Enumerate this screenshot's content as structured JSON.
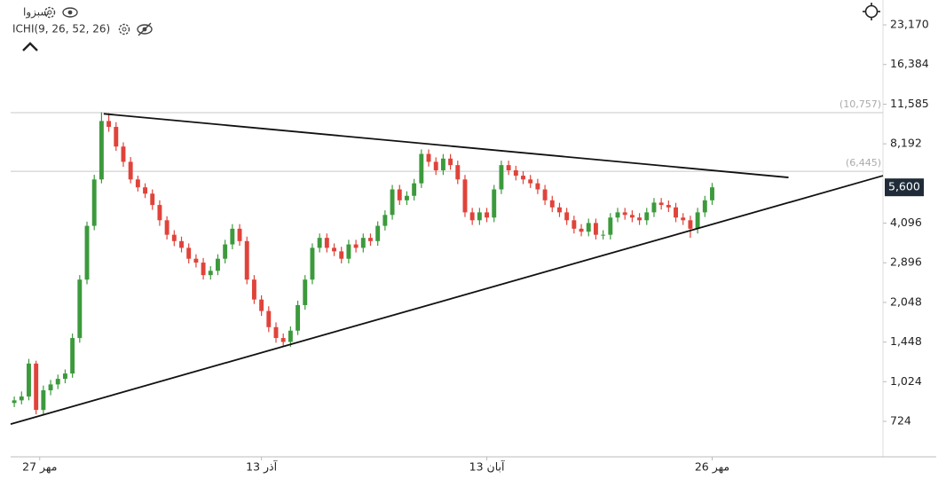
{
  "chart_data": {
    "type": "candlestick",
    "title": "سبزوا",
    "indicator": "ICHI(9, 26, 52, 26)",
    "log_scale": true,
    "up_color": "#3c9a3c",
    "down_color": "#e0433a",
    "xlim": [
      -0.5,
      119.5
    ],
    "ylim": [
      531,
      28800
    ],
    "xticks": [
      {
        "value": 3.5,
        "label": "27 مهر"
      },
      {
        "value": 34,
        "label": "13 آذر"
      },
      {
        "value": 65,
        "label": "13 آبان"
      },
      {
        "value": 96,
        "label": "26 مهر"
      }
    ],
    "yticks": [
      724,
      {
        "value": 1024,
        "label": "1,024"
      },
      {
        "value": 1448,
        "label": "1,448"
      },
      {
        "value": 2048,
        "label": "2,048"
      },
      {
        "value": 2896,
        "label": "2,896"
      },
      {
        "value": 4096,
        "label": "4,096"
      },
      {
        "value": 8192,
        "label": "8,192"
      },
      {
        "value": 11585,
        "label": "11,585"
      },
      {
        "value": 16384,
        "label": "16,384"
      },
      {
        "value": 23170,
        "label": "23,170"
      }
    ],
    "price_lines": [
      {
        "value": 10757,
        "label": "(10,757)"
      },
      {
        "value": 6445,
        "label": "(6,445)"
      }
    ],
    "last_price": {
      "value": 5600,
      "label": "5,600"
    },
    "trendlines": [
      {
        "x": [
          12.3,
          106.5
        ],
        "y": [
          10650,
          6105
        ]
      },
      {
        "x": [
          -0.5,
          119.5
        ],
        "y": [
          707,
          6200
        ]
      }
    ],
    "ohlc": [
      [
        850,
        900,
        820,
        870
      ],
      [
        870,
        940,
        840,
        900
      ],
      [
        900,
        1250,
        870,
        1200
      ],
      [
        1200,
        1230,
        770,
        800
      ],
      [
        800,
        990,
        770,
        950
      ],
      [
        950,
        1040,
        910,
        1000
      ],
      [
        1000,
        1090,
        960,
        1050
      ],
      [
        1050,
        1140,
        1010,
        1100
      ],
      [
        1100,
        1560,
        1060,
        1500
      ],
      [
        1500,
        2600,
        1440,
        2500
      ],
      [
        2500,
        4150,
        2400,
        4000
      ],
      [
        4000,
        6250,
        3850,
        6000
      ],
      [
        6000,
        10800,
        5800,
        10000
      ],
      [
        10000,
        10700,
        9100,
        9500
      ],
      [
        9500,
        9900,
        7700,
        8000
      ],
      [
        8000,
        8300,
        6700,
        7000
      ],
      [
        7000,
        7300,
        5800,
        6000
      ],
      [
        6000,
        6200,
        5400,
        5600
      ],
      [
        5600,
        5800,
        5100,
        5300
      ],
      [
        5300,
        5500,
        4600,
        4800
      ],
      [
        4800,
        5000,
        4000,
        4200
      ],
      [
        4200,
        4350,
        3550,
        3700
      ],
      [
        3700,
        3850,
        3350,
        3500
      ],
      [
        3500,
        3640,
        3170,
        3300
      ],
      [
        3300,
        3430,
        2880,
        3000
      ],
      [
        3000,
        3120,
        2780,
        2900
      ],
      [
        2900,
        3020,
        2500,
        2600
      ],
      [
        2600,
        2810,
        2500,
        2700
      ],
      [
        2700,
        3120,
        2600,
        3000
      ],
      [
        3000,
        3540,
        2880,
        3400
      ],
      [
        3400,
        4060,
        3260,
        3900
      ],
      [
        3900,
        4060,
        3360,
        3500
      ],
      [
        3500,
        3640,
        2400,
        2500
      ],
      [
        2500,
        2600,
        2020,
        2100
      ],
      [
        2100,
        2180,
        1820,
        1900
      ],
      [
        1900,
        1980,
        1580,
        1650
      ],
      [
        1650,
        1720,
        1440,
        1500
      ],
      [
        1500,
        1560,
        1390,
        1450
      ],
      [
        1450,
        1660,
        1390,
        1600
      ],
      [
        1600,
        2080,
        1540,
        2000
      ],
      [
        2000,
        2600,
        1920,
        2500
      ],
      [
        2500,
        3430,
        2400,
        3300
      ],
      [
        3300,
        3740,
        3170,
        3600
      ],
      [
        3600,
        3740,
        3170,
        3300
      ],
      [
        3300,
        3430,
        3070,
        3200
      ],
      [
        3200,
        3330,
        2880,
        3000
      ],
      [
        3000,
        3540,
        2880,
        3400
      ],
      [
        3400,
        3540,
        3170,
        3300
      ],
      [
        3300,
        3740,
        3170,
        3600
      ],
      [
        3600,
        3740,
        3360,
        3500
      ],
      [
        3500,
        4160,
        3360,
        4000
      ],
      [
        4000,
        4580,
        3840,
        4400
      ],
      [
        4400,
        5720,
        4220,
        5500
      ],
      [
        5500,
        5720,
        4800,
        5000
      ],
      [
        5000,
        5410,
        4800,
        5200
      ],
      [
        5200,
        6030,
        4990,
        5800
      ],
      [
        5800,
        7800,
        5570,
        7500
      ],
      [
        7500,
        7800,
        6720,
        7000
      ],
      [
        7000,
        7280,
        6240,
        6500
      ],
      [
        6500,
        7490,
        6240,
        7200
      ],
      [
        7200,
        7490,
        6530,
        6800
      ],
      [
        6800,
        7070,
        5760,
        6000
      ],
      [
        6000,
        6240,
        4320,
        4500
      ],
      [
        4500,
        4680,
        4030,
        4200
      ],
      [
        4200,
        4680,
        4030,
        4500
      ],
      [
        4500,
        4680,
        4130,
        4300
      ],
      [
        4300,
        5720,
        4130,
        5500
      ],
      [
        5500,
        7070,
        5280,
        6800
      ],
      [
        6800,
        7070,
        6240,
        6500
      ],
      [
        6500,
        6760,
        5950,
        6200
      ],
      [
        6200,
        6450,
        5760,
        6000
      ],
      [
        6000,
        6240,
        5570,
        5800
      ],
      [
        5800,
        6030,
        5280,
        5500
      ],
      [
        5500,
        5720,
        4800,
        5000
      ],
      [
        5000,
        5200,
        4510,
        4700
      ],
      [
        4700,
        4890,
        4320,
        4500
      ],
      [
        4500,
        4680,
        4030,
        4200
      ],
      [
        4200,
        4370,
        3740,
        3900
      ],
      [
        3900,
        4060,
        3650,
        3800
      ],
      [
        3800,
        4260,
        3650,
        4100
      ],
      [
        4100,
        4260,
        3550,
        3700
      ],
      [
        3700,
        3850,
        3550,
        3700
      ],
      [
        3700,
        4470,
        3550,
        4300
      ],
      [
        4300,
        4680,
        4130,
        4500
      ],
      [
        4500,
        4680,
        4220,
        4400
      ],
      [
        4400,
        4580,
        4130,
        4300
      ],
      [
        4300,
        4470,
        4030,
        4200
      ],
      [
        4200,
        4680,
        4030,
        4500
      ],
      [
        4500,
        5100,
        4320,
        4900
      ],
      [
        4900,
        5100,
        4610,
        4800
      ],
      [
        4800,
        4990,
        4510,
        4700
      ],
      [
        4700,
        4890,
        4130,
        4300
      ],
      [
        4300,
        4470,
        4030,
        4200
      ],
      [
        4200,
        4370,
        3600,
        3900
      ],
      [
        3900,
        4680,
        3740,
        4500
      ],
      [
        4500,
        5200,
        4320,
        5000
      ],
      [
        5000,
        5820,
        4800,
        5600
      ]
    ]
  }
}
